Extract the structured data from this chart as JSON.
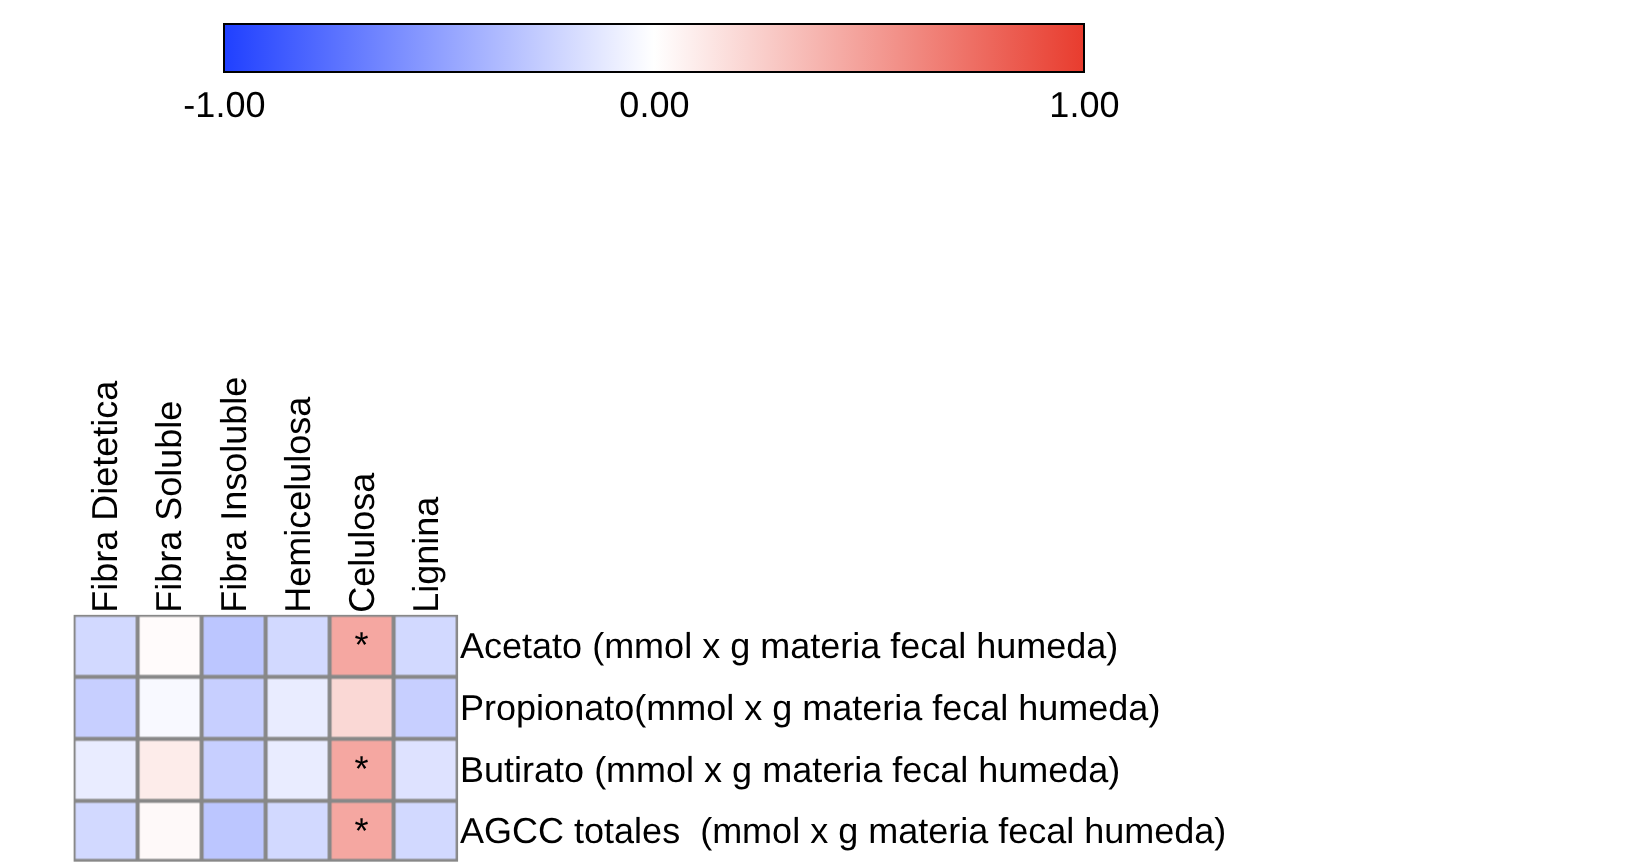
{
  "chart_data": {
    "type": "heatmap",
    "categories": [
      "Fibra Dietetica",
      "Fibra Soluble",
      "Fibra Insoluble",
      "Hemicelulosa",
      "Celulosa",
      "Lignina"
    ],
    "y_categories": [
      "Acetato (mmol x g materia fecal humeda)",
      "Propionato(mmol x g materia fecal humeda)",
      "Butirato (mmol x g materia fecal humeda)",
      "AGCC totales  (mmol x g materia fecal humeda)"
    ],
    "cells": [
      [
        -0.2,
        0.02,
        -0.3,
        -0.2,
        0.45,
        -0.2
      ],
      [
        -0.25,
        -0.03,
        -0.25,
        -0.1,
        0.2,
        -0.25
      ],
      [
        -0.1,
        0.1,
        -0.25,
        -0.1,
        0.45,
        -0.15
      ],
      [
        -0.2,
        0.03,
        -0.3,
        -0.2,
        0.45,
        -0.2
      ]
    ],
    "cell_labels": [
      [
        null,
        null,
        null,
        null,
        "*",
        null
      ],
      [
        null,
        null,
        null,
        null,
        null,
        null
      ],
      [
        null,
        null,
        null,
        null,
        "*",
        null
      ],
      [
        null,
        null,
        null,
        null,
        "*",
        null
      ]
    ],
    "clim": [
      -1,
      1
    ],
    "cticks": [
      {
        "value": -1,
        "label": "-1.00"
      },
      {
        "value": 0,
        "label": "0.00"
      },
      {
        "value": 1,
        "label": "1.00"
      }
    ]
  }
}
